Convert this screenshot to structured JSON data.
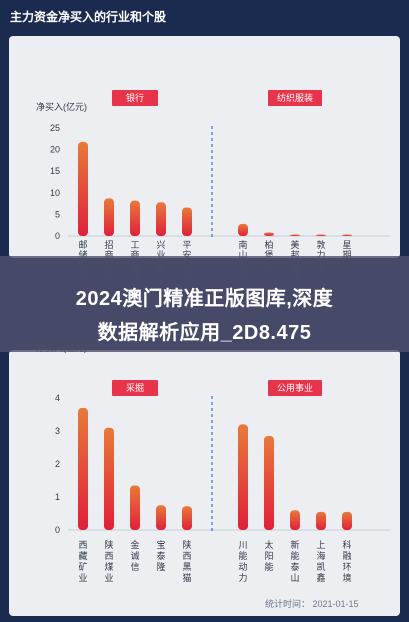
{
  "header": {
    "title": "主力资金净买入的行业和个股"
  },
  "overlay": {
    "line1": "2024澳门精准正版图库,深度",
    "line2": "数据解析应用_2D8.475"
  },
  "footer": {
    "stat_label": "统计时间： 2021-01-15"
  },
  "colors": {
    "bar_top": "#e87a3a",
    "bar_bottom": "#e0203a",
    "badge": "#e8344a",
    "divider": "#3b6fd1",
    "background": "#1b2a4f"
  },
  "chart_data": [
    {
      "type": "bar",
      "ylabel": "净买入(亿元)",
      "ylim": [
        0,
        25
      ],
      "yticks": [
        0,
        5,
        10,
        15,
        20,
        25
      ],
      "groups": [
        {
          "name": "银行",
          "categories": [
            "邮储银行",
            "招商银行",
            "工商银行",
            "兴业银行",
            "平安银行"
          ],
          "values": [
            21.8,
            8.7,
            8.2,
            7.8,
            6.6
          ]
        },
        {
          "name": "纺织服装",
          "categories": [
            "南山智尚",
            "柏堡龙",
            "美邦服饰",
            "敦力思",
            "星期六"
          ],
          "values": [
            2.8,
            0.8,
            0.3,
            0.15,
            0.1
          ]
        }
      ]
    },
    {
      "type": "bar",
      "ylabel": "净买入(亿元)",
      "ylim": [
        0,
        4
      ],
      "yticks": [
        0,
        1,
        2,
        3,
        4
      ],
      "groups": [
        {
          "name": "采掘",
          "categories": [
            "西藏矿业",
            "陕西煤业",
            "金诚信",
            "宝泰隆",
            "陕西黑猫"
          ],
          "values": [
            3.7,
            3.1,
            1.35,
            0.75,
            0.72
          ]
        },
        {
          "name": "公用事业",
          "categories": [
            "川能动力",
            "太阳能",
            "新能泰山",
            "上海凯鑫",
            "科融环境"
          ],
          "values": [
            3.2,
            2.85,
            0.6,
            0.55,
            0.55
          ]
        }
      ]
    }
  ]
}
